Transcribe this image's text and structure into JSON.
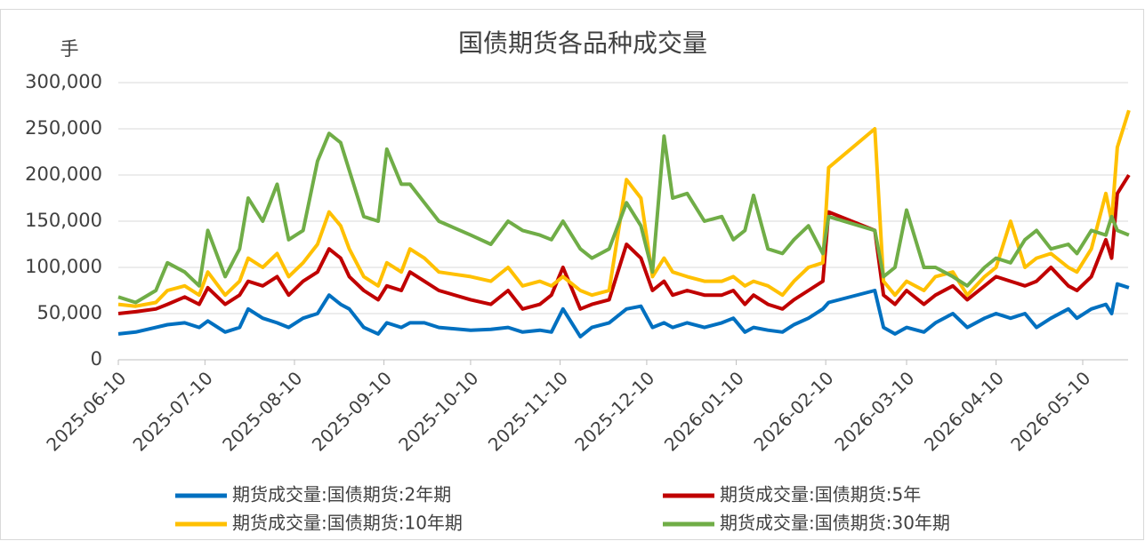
{
  "chart_data": {
    "type": "line",
    "title": "国债期货各品种成交量",
    "y_label": "手",
    "x": [
      "2025-06-10",
      "2025-06-16",
      "2025-06-23",
      "2025-06-27",
      "2025-07-03",
      "2025-07-08",
      "2025-07-11",
      "2025-07-17",
      "2025-07-22",
      "2025-07-25",
      "2025-07-30",
      "2025-08-04",
      "2025-08-08",
      "2025-08-13",
      "2025-08-18",
      "2025-08-22",
      "2025-08-26",
      "2025-08-29",
      "2025-09-03",
      "2025-09-08",
      "2025-09-11",
      "2025-09-16",
      "2025-09-19",
      "2025-09-24",
      "2025-09-29",
      "2025-10-10",
      "2025-10-17",
      "2025-10-23",
      "2025-10-28",
      "2025-11-03",
      "2025-11-07",
      "2025-11-11",
      "2025-11-17",
      "2025-11-21",
      "2025-11-27",
      "2025-12-03",
      "2025-12-08",
      "2025-12-12",
      "2025-12-16",
      "2025-12-19",
      "2025-12-24",
      "2025-12-30",
      "2026-01-05",
      "2026-01-09",
      "2026-01-13",
      "2026-01-16",
      "2026-01-21",
      "2026-01-26",
      "2026-01-30",
      "2026-02-04",
      "2026-02-09",
      "2026-02-11",
      "2026-02-27",
      "2026-03-02",
      "2026-03-06",
      "2026-03-10",
      "2026-03-16",
      "2026-03-20",
      "2026-03-26",
      "2026-03-31",
      "2026-04-06",
      "2026-04-10",
      "2026-04-15",
      "2026-04-20",
      "2026-04-24",
      "2026-04-29",
      "2026-05-05",
      "2026-05-08",
      "2026-05-13",
      "2026-05-18",
      "2026-05-20",
      "2026-05-22",
      "2026-05-26"
    ],
    "series": [
      {
        "name": "期货成交量:国债期货:2年期",
        "color": "#0070c0",
        "values": [
          28000,
          30000,
          35000,
          38000,
          40000,
          35000,
          42000,
          30000,
          35000,
          55000,
          45000,
          40000,
          35000,
          45000,
          50000,
          70000,
          60000,
          55000,
          35000,
          28000,
          40000,
          35000,
          40000,
          40000,
          35000,
          32000,
          33000,
          35000,
          30000,
          32000,
          30000,
          55000,
          25000,
          35000,
          40000,
          55000,
          58000,
          35000,
          40000,
          35000,
          40000,
          35000,
          40000,
          45000,
          30000,
          35000,
          32000,
          30000,
          38000,
          45000,
          55000,
          62000,
          75000,
          35000,
          28000,
          35000,
          30000,
          40000,
          50000,
          35000,
          45000,
          50000,
          45000,
          50000,
          35000,
          45000,
          55000,
          45000,
          55000,
          60000,
          50000,
          82000,
          78000
        ]
      },
      {
        "name": "期货成交量:国债期货:5年",
        "color": "#c00000",
        "values": [
          50000,
          52000,
          55000,
          60000,
          68000,
          60000,
          78000,
          60000,
          70000,
          85000,
          80000,
          90000,
          70000,
          85000,
          95000,
          120000,
          110000,
          90000,
          75000,
          65000,
          80000,
          75000,
          95000,
          85000,
          75000,
          65000,
          60000,
          75000,
          55000,
          60000,
          70000,
          100000,
          55000,
          60000,
          65000,
          125000,
          110000,
          75000,
          85000,
          70000,
          75000,
          70000,
          70000,
          75000,
          60000,
          70000,
          60000,
          55000,
          65000,
          75000,
          85000,
          160000,
          140000,
          70000,
          60000,
          75000,
          60000,
          70000,
          80000,
          65000,
          80000,
          90000,
          85000,
          80000,
          85000,
          100000,
          80000,
          75000,
          90000,
          130000,
          110000,
          180000,
          200000
        ]
      },
      {
        "name": "期货成交量:国债期货:10年期",
        "color": "#ffc000",
        "values": [
          60000,
          58000,
          62000,
          75000,
          80000,
          70000,
          95000,
          70000,
          85000,
          110000,
          100000,
          115000,
          90000,
          105000,
          125000,
          160000,
          145000,
          120000,
          90000,
          80000,
          105000,
          95000,
          120000,
          110000,
          95000,
          90000,
          85000,
          100000,
          80000,
          85000,
          80000,
          90000,
          75000,
          70000,
          75000,
          195000,
          175000,
          90000,
          110000,
          95000,
          90000,
          85000,
          85000,
          90000,
          80000,
          85000,
          80000,
          70000,
          85000,
          100000,
          105000,
          208000,
          250000,
          85000,
          70000,
          85000,
          75000,
          90000,
          95000,
          70000,
          90000,
          100000,
          150000,
          100000,
          110000,
          115000,
          100000,
          95000,
          120000,
          180000,
          150000,
          230000,
          270000
        ]
      },
      {
        "name": "期货成交量:国债期货:30年期",
        "color": "#70ad47",
        "values": [
          68000,
          62000,
          75000,
          105000,
          95000,
          80000,
          140000,
          90000,
          120000,
          175000,
          150000,
          190000,
          130000,
          140000,
          215000,
          245000,
          235000,
          205000,
          155000,
          150000,
          228000,
          190000,
          190000,
          170000,
          150000,
          135000,
          125000,
          150000,
          140000,
          135000,
          130000,
          150000,
          120000,
          110000,
          120000,
          170000,
          145000,
          95000,
          242000,
          175000,
          180000,
          150000,
          155000,
          130000,
          140000,
          178000,
          120000,
          115000,
          130000,
          145000,
          115000,
          155000,
          140000,
          90000,
          100000,
          162000,
          100000,
          100000,
          90000,
          80000,
          100000,
          110000,
          105000,
          130000,
          140000,
          120000,
          125000,
          115000,
          140000,
          135000,
          155000,
          140000,
          135000
        ]
      }
    ],
    "xticks": [
      "2025-06-10",
      "2025-07-10",
      "2025-08-10",
      "2025-09-10",
      "2025-10-10",
      "2025-11-10",
      "2025-12-10",
      "2026-01-10",
      "2026-02-10",
      "2026-03-10",
      "2026-04-10",
      "2026-05-10"
    ],
    "ylim": [
      0,
      300000
    ],
    "yticks": [
      0,
      {
        "value": 50000,
        "label": "50,000"
      },
      {
        "value": 100000,
        "label": "100,000"
      },
      {
        "value": 150000,
        "label": "150,000"
      },
      {
        "value": 200000,
        "label": "200,000"
      },
      {
        "value": 250000,
        "label": "250,000"
      },
      {
        "value": 300000,
        "label": "300,000"
      }
    ],
    "grid": true
  }
}
